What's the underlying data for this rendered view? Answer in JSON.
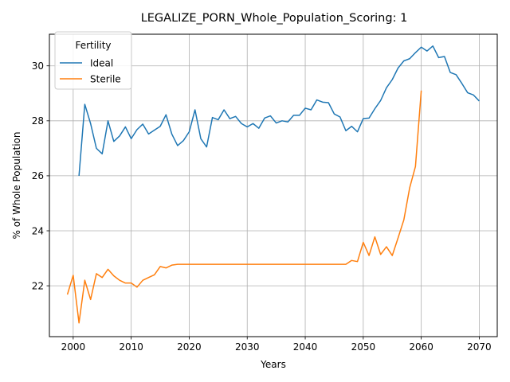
{
  "chart_data": {
    "type": "line",
    "title": "LEGALIZE_PORN_Whole_Population_Scoring: 1",
    "xlabel": "Years",
    "ylabel": "% of Whole Population",
    "xlim": [
      1995.9,
      2073.1
    ],
    "ylim": [
      20.15,
      31.15
    ],
    "xticks": [
      2000,
      2010,
      2020,
      2030,
      2040,
      2050,
      2060,
      2070
    ],
    "yticks": [
      22,
      24,
      26,
      28,
      30
    ],
    "grid": true,
    "legend": {
      "title": "Fertility",
      "position": "top-left"
    },
    "series": [
      {
        "name": "Ideal",
        "color": "#1f77b4",
        "x": [
          2001,
          2002,
          2003,
          2004,
          2005,
          2006,
          2007,
          2008,
          2009,
          2010,
          2011,
          2012,
          2013,
          2014,
          2015,
          2016,
          2017,
          2018,
          2019,
          2020,
          2021,
          2022,
          2023,
          2024,
          2025,
          2026,
          2027,
          2028,
          2029,
          2030,
          2031,
          2032,
          2033,
          2034,
          2035,
          2036,
          2037,
          2038,
          2039,
          2040,
          2041,
          2042,
          2043,
          2044,
          2045,
          2046,
          2047,
          2048,
          2049,
          2050,
          2051,
          2052,
          2053,
          2054,
          2055,
          2056,
          2057,
          2058,
          2059,
          2060,
          2061,
          2062,
          2063,
          2064,
          2065,
          2066,
          2067,
          2068,
          2069,
          2070
        ],
        "y": [
          26.0,
          28.6,
          27.9,
          27.0,
          26.8,
          28.0,
          27.25,
          27.45,
          27.78,
          27.35,
          27.68,
          27.88,
          27.52,
          27.66,
          27.8,
          28.22,
          27.52,
          27.1,
          27.28,
          27.6,
          28.4,
          27.35,
          27.05,
          28.12,
          28.04,
          28.4,
          28.08,
          28.16,
          27.9,
          27.78,
          27.9,
          27.73,
          28.1,
          28.18,
          27.92,
          28.0,
          27.96,
          28.2,
          28.2,
          28.46,
          28.4,
          28.76,
          28.68,
          28.66,
          28.25,
          28.14,
          27.64,
          27.8,
          27.6,
          28.08,
          28.1,
          28.44,
          28.74,
          29.2,
          29.5,
          29.92,
          30.18,
          30.26,
          30.48,
          30.68,
          30.54,
          30.72,
          30.3,
          30.34,
          29.76,
          29.68,
          29.36,
          29.02,
          28.94,
          28.72
        ]
      },
      {
        "name": "Sterile",
        "color": "#ff7f0e",
        "x": [
          1999,
          2000,
          2001,
          2002,
          2003,
          2004,
          2005,
          2006,
          2007,
          2008,
          2009,
          2010,
          2011,
          2012,
          2013,
          2014,
          2015,
          2016,
          2017,
          2018,
          2019,
          2020,
          2021,
          2022,
          2023,
          2024,
          2025,
          2026,
          2027,
          2028,
          2029,
          2030,
          2031,
          2032,
          2033,
          2034,
          2035,
          2036,
          2037,
          2038,
          2039,
          2040,
          2041,
          2042,
          2043,
          2044,
          2045,
          2046,
          2047,
          2048,
          2049,
          2050,
          2051,
          2052,
          2053,
          2054,
          2055,
          2056,
          2057,
          2058,
          2059,
          2060
        ],
        "y": [
          21.68,
          22.38,
          20.65,
          22.2,
          21.5,
          22.44,
          22.3,
          22.6,
          22.36,
          22.2,
          22.1,
          22.1,
          21.95,
          22.2,
          22.3,
          22.4,
          22.7,
          22.65,
          22.75,
          22.78,
          22.78,
          22.78,
          22.78,
          22.78,
          22.78,
          22.78,
          22.78,
          22.78,
          22.78,
          22.78,
          22.78,
          22.78,
          22.78,
          22.78,
          22.78,
          22.78,
          22.78,
          22.78,
          22.78,
          22.78,
          22.78,
          22.78,
          22.78,
          22.78,
          22.78,
          22.78,
          22.78,
          22.78,
          22.78,
          22.92,
          22.88,
          23.58,
          23.1,
          23.78,
          23.14,
          23.42,
          23.1,
          23.74,
          24.4,
          25.56,
          26.34,
          29.1
        ]
      }
    ]
  }
}
